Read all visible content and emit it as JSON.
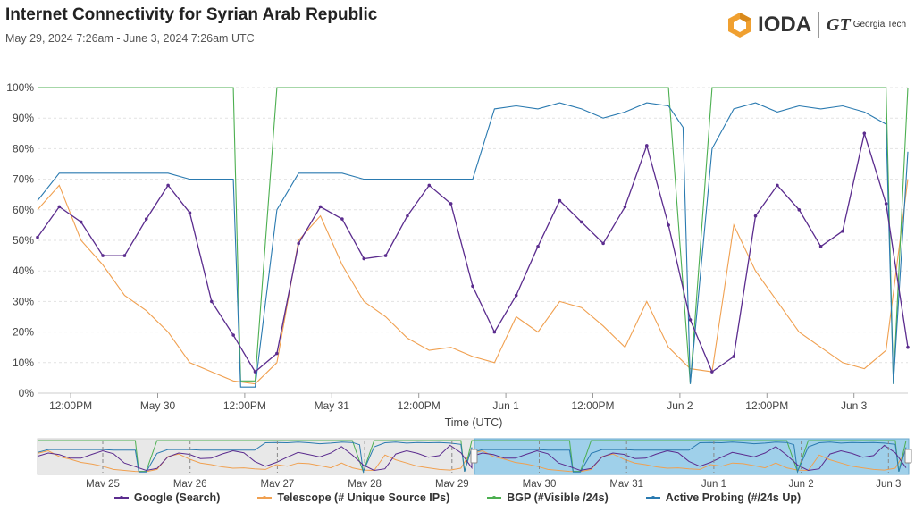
{
  "header": {
    "title": "Internet Connectivity for Syrian Arab Republic",
    "subtitle": "May 29, 2024 7:26am - June 3, 2024 7:26am UTC",
    "logo_text": "IODA",
    "partner_mark": "GT",
    "partner_name": "Georgia Tech"
  },
  "chart_data": {
    "type": "line",
    "xlabel": "Time (UTC)",
    "ylim": [
      0,
      100
    ],
    "y_ticks": [
      "0%",
      "10%",
      "20%",
      "30%",
      "40%",
      "50%",
      "60%",
      "70%",
      "80%",
      "90%",
      "100%"
    ],
    "x_ticks": [
      "12:00PM",
      "May 30",
      "12:00PM",
      "May 31",
      "12:00PM",
      "Jun 1",
      "12:00PM",
      "Jun 2",
      "12:00PM",
      "Jun 3"
    ],
    "x_tick_hours": [
      4.57,
      16.57,
      28.57,
      40.57,
      52.57,
      64.57,
      76.57,
      88.57,
      100.57,
      112.57
    ],
    "x_range_hours": [
      0,
      120
    ],
    "series": [
      {
        "name": "Google (Search)",
        "color": "#5b2c8e",
        "x": [
          0,
          3,
          6,
          9,
          12,
          15,
          18,
          21,
          24,
          27,
          30,
          33,
          36,
          39,
          42,
          45,
          48,
          51,
          54,
          57,
          60,
          63,
          66,
          69,
          72,
          75,
          78,
          81,
          84,
          87,
          90,
          93,
          96,
          99,
          102,
          105,
          108,
          111,
          114,
          117,
          120
        ],
        "y": [
          51,
          61,
          56,
          45,
          45,
          57,
          68,
          59,
          30,
          19,
          7,
          13,
          49,
          61,
          57,
          44,
          45,
          58,
          68,
          62,
          35,
          20,
          32,
          48,
          63,
          56,
          49,
          61,
          81,
          55,
          24,
          7,
          12,
          58,
          68,
          60,
          48,
          53,
          85,
          62,
          15
        ]
      },
      {
        "name": "Telescope (# Unique Source IPs)",
        "color": "#f0a050",
        "x": [
          0,
          3,
          6,
          9,
          12,
          15,
          18,
          21,
          24,
          27,
          30,
          33,
          36,
          39,
          42,
          45,
          48,
          51,
          54,
          57,
          60,
          63,
          66,
          69,
          72,
          75,
          78,
          81,
          84,
          87,
          90,
          93,
          96,
          99,
          102,
          105,
          108,
          111,
          114,
          117,
          120
        ],
        "y": [
          60,
          68,
          50,
          42,
          32,
          27,
          20,
          10,
          7,
          4,
          3,
          10,
          50,
          58,
          42,
          30,
          25,
          18,
          14,
          15,
          12,
          10,
          25,
          20,
          30,
          28,
          22,
          15,
          30,
          15,
          8,
          7,
          55,
          40,
          30,
          20,
          15,
          10,
          8,
          14,
          70
        ]
      },
      {
        "name": "BGP (#Visible /24s)",
        "color": "#4caf50",
        "x": [
          0,
          3,
          6,
          9,
          12,
          15,
          18,
          21,
          24,
          27,
          28,
          30,
          33,
          36,
          39,
          42,
          45,
          48,
          51,
          54,
          57,
          60,
          63,
          66,
          69,
          72,
          75,
          78,
          81,
          84,
          87,
          89,
          90,
          93,
          96,
          99,
          102,
          105,
          108,
          111,
          114,
          117,
          118,
          120
        ],
        "y": [
          100,
          100,
          100,
          100,
          100,
          100,
          100,
          100,
          100,
          100,
          4,
          4,
          100,
          100,
          100,
          100,
          100,
          100,
          100,
          100,
          100,
          100,
          100,
          100,
          100,
          100,
          100,
          100,
          100,
          100,
          100,
          35,
          3,
          100,
          100,
          100,
          100,
          100,
          100,
          100,
          100,
          100,
          3,
          100
        ]
      },
      {
        "name": "Active Probing (#/24s Up)",
        "color": "#2a7ab0",
        "x": [
          0,
          3,
          6,
          9,
          12,
          15,
          18,
          21,
          24,
          27,
          28,
          30,
          33,
          36,
          39,
          42,
          45,
          48,
          51,
          54,
          57,
          60,
          63,
          66,
          69,
          72,
          75,
          78,
          81,
          84,
          87,
          89,
          90,
          93,
          96,
          99,
          102,
          105,
          108,
          111,
          114,
          117,
          118,
          120
        ],
        "y": [
          63,
          72,
          72,
          72,
          72,
          72,
          72,
          70,
          70,
          70,
          2,
          2,
          60,
          72,
          72,
          72,
          70,
          70,
          70,
          70,
          70,
          70,
          93,
          94,
          93,
          95,
          93,
          90,
          92,
          95,
          94,
          87,
          3,
          80,
          93,
          95,
          92,
          94,
          93,
          94,
          92,
          88,
          3,
          79
        ]
      }
    ],
    "navigator": {
      "x_ticks": [
        "May 25",
        "May 26",
        "May 27",
        "May 28",
        "May 29",
        "May 30",
        "May 31",
        "Jun 1",
        "Jun 2",
        "Jun 3"
      ]
    }
  },
  "legend": [
    {
      "label": "Google (Search)",
      "color": "#5b2c8e"
    },
    {
      "label": "Telescope (# Unique Source IPs)",
      "color": "#f0a050"
    },
    {
      "label": "BGP (#Visible /24s)",
      "color": "#4caf50"
    },
    {
      "label": "Active Probing (#/24s Up)",
      "color": "#2a7ab0"
    }
  ]
}
